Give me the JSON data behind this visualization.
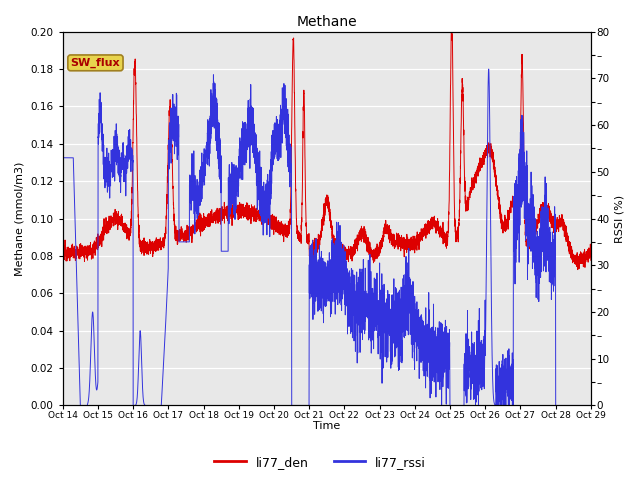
{
  "title": "Methane",
  "ylabel_left": "Methane (mmol/m3)",
  "ylabel_right": "RSSI (%)",
  "xlabel": "Time",
  "xlim_days": [
    14,
    29
  ],
  "ylim_left": [
    0.0,
    0.2
  ],
  "ylim_right": [
    0,
    80
  ],
  "yticks_left": [
    0.0,
    0.02,
    0.04,
    0.06,
    0.08,
    0.1,
    0.12,
    0.14,
    0.16,
    0.18,
    0.2
  ],
  "yticks_right_labeled": [
    0,
    10,
    20,
    30,
    40,
    50,
    60,
    70,
    80
  ],
  "yticks_right_all": [
    0,
    5,
    10,
    15,
    20,
    25,
    30,
    35,
    40,
    45,
    50,
    55,
    60,
    65,
    70,
    75,
    80
  ],
  "xtick_positions": [
    14,
    15,
    16,
    17,
    18,
    19,
    20,
    21,
    22,
    23,
    24,
    25,
    26,
    27,
    28,
    29
  ],
  "xtick_labels": [
    "Oct 14",
    "Oct 15",
    "Oct 16",
    "Oct 17",
    "Oct 18",
    "Oct 19",
    "Oct 20",
    "Oct 21",
    "Oct 22",
    "Oct 23",
    "Oct 24",
    "Oct 25",
    "Oct 26",
    "Oct 27",
    "Oct 28",
    "Oct 29"
  ],
  "color_red": "#dd0000",
  "color_blue": "#3333dd",
  "bg_color": "#e8e8e8",
  "fig_bg": "#ffffff",
  "legend_labels": [
    "li77_den",
    "li77_rssi"
  ],
  "sw_flux_label": "SW_flux",
  "sw_flux_fg": "#aa0000",
  "sw_flux_bg": "#e8d44d",
  "sw_flux_border": "#a08020"
}
